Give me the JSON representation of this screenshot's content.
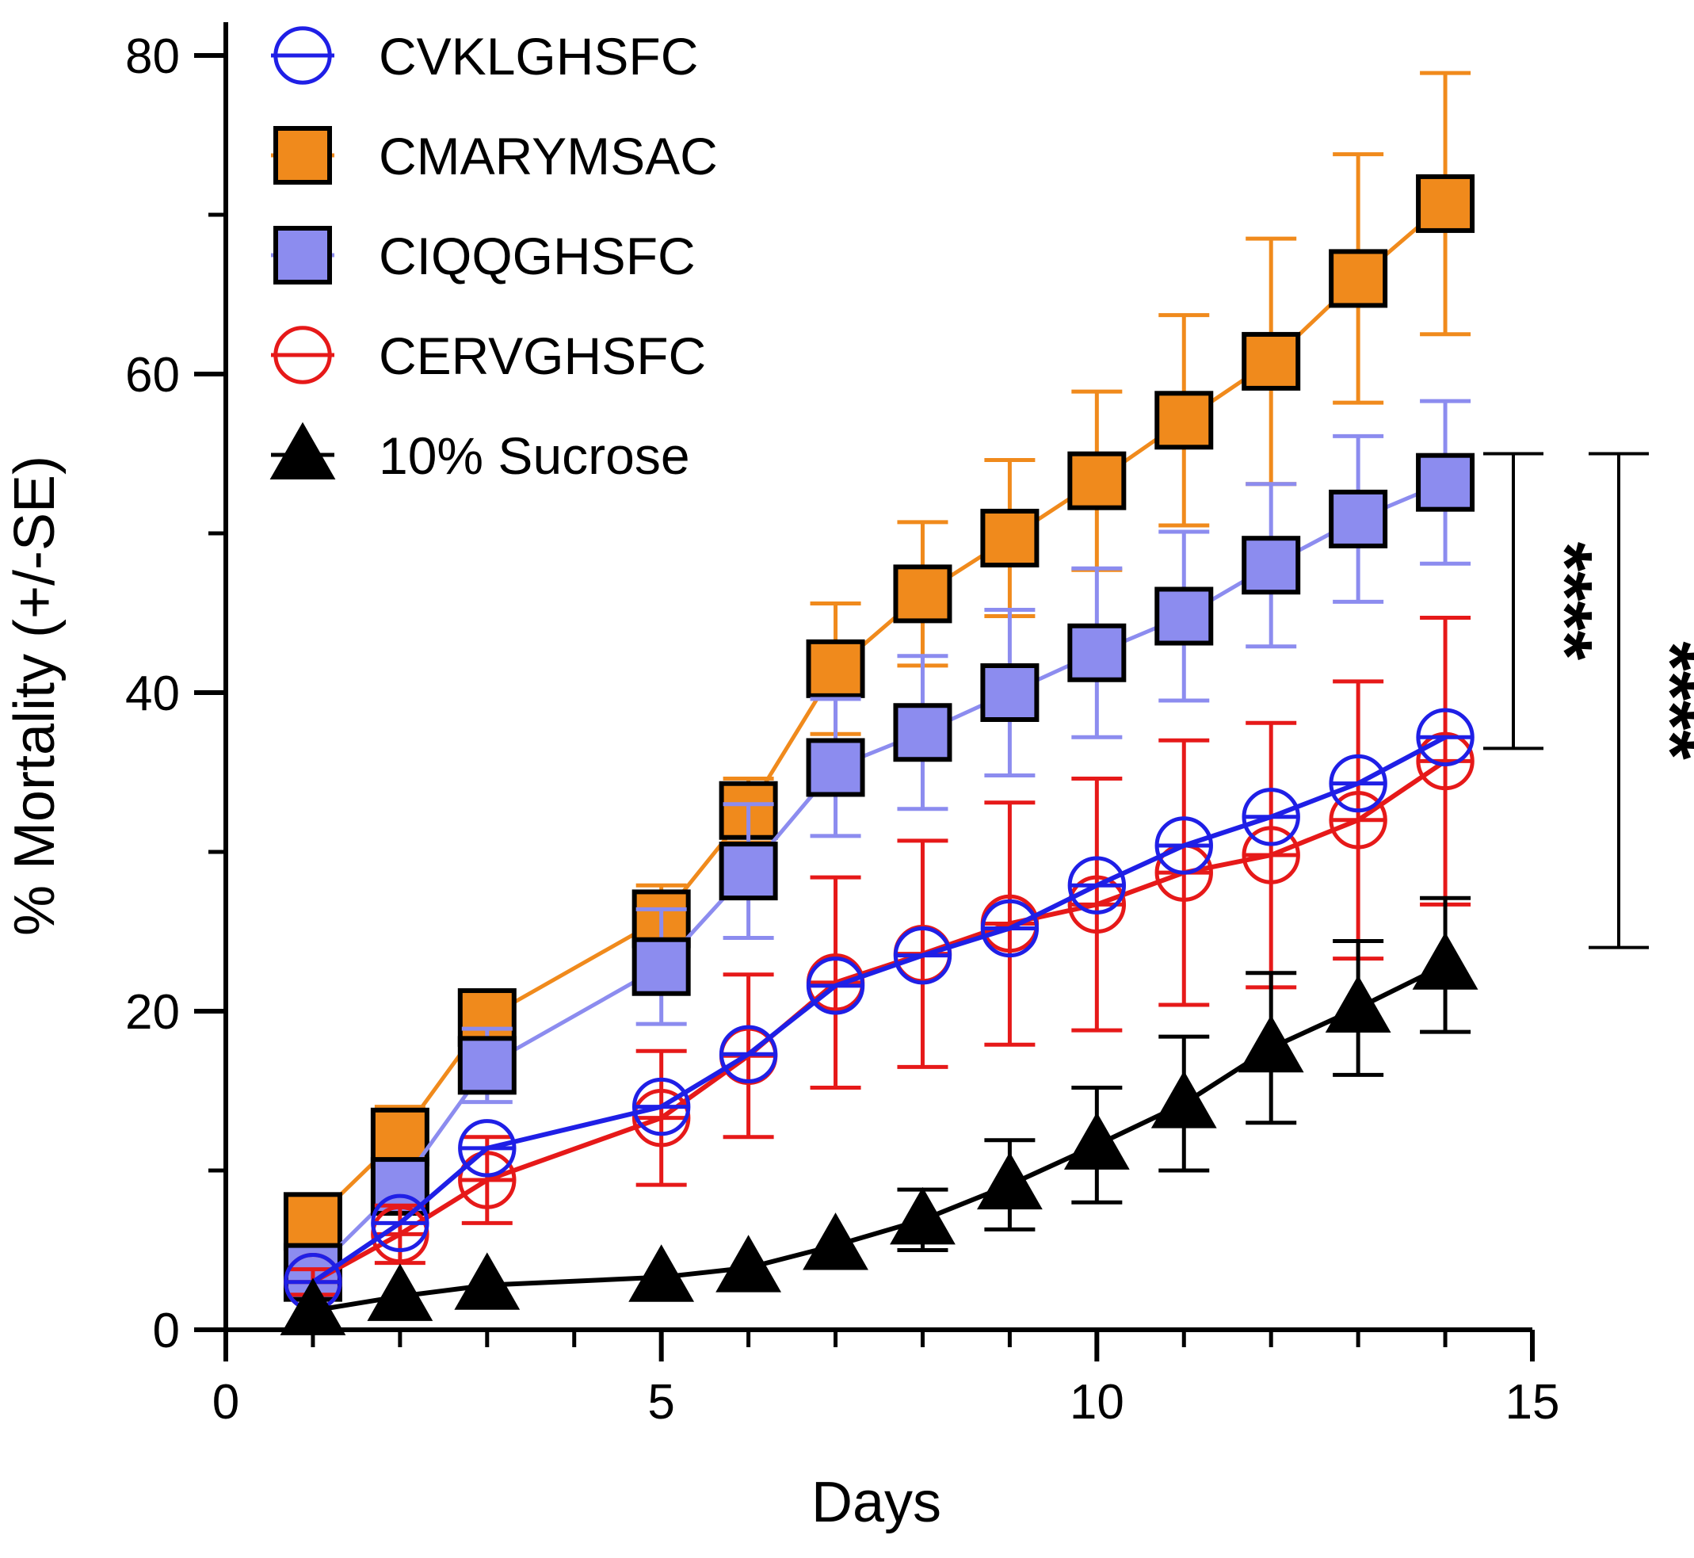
{
  "chart_data": {
    "type": "line",
    "title": "",
    "xlabel": "Days",
    "ylabel": "% Mortality (+/-SE)",
    "xlim": [
      0,
      15
    ],
    "ylim": [
      0,
      80
    ],
    "x_ticks": [
      0,
      5,
      10,
      15
    ],
    "y_ticks": [
      0,
      20,
      40,
      60,
      80
    ],
    "grid": false,
    "legend_position": "top-left",
    "series": [
      {
        "name": "CVKLGHSFC",
        "marker": "circle-open",
        "color": "#1f1fe6",
        "x": [
          1,
          2,
          3,
          5,
          6,
          7,
          8,
          9,
          10,
          11,
          12,
          13,
          14
        ],
        "y": [
          3.0,
          6.7,
          11.4,
          14.0,
          17.3,
          21.6,
          23.5,
          25.2,
          27.9,
          30.4,
          32.2,
          34.3,
          37.2
        ],
        "error": [
          0,
          0,
          0,
          0,
          0,
          0,
          0,
          0,
          0,
          0,
          0,
          0,
          0
        ]
      },
      {
        "name": "CMARYMSAC",
        "marker": "square-filled",
        "color": "#f08a1c",
        "x": [
          1,
          2,
          3,
          5,
          6,
          7,
          8,
          9,
          10,
          11,
          12,
          13,
          14
        ],
        "y": [
          6.8,
          12.1,
          19.6,
          25.8,
          32.6,
          41.5,
          46.2,
          49.7,
          53.3,
          57.1,
          60.8,
          66.0,
          70.7
        ],
        "error": [
          1.2,
          1.9,
          1.5,
          2.1,
          2.0,
          4.1,
          4.5,
          4.9,
          5.6,
          6.6,
          7.7,
          7.8,
          8.2
        ]
      },
      {
        "name": "CIQQGHSFC",
        "marker": "square-filled",
        "color": "#8c8cef",
        "x": [
          1,
          2,
          3,
          5,
          6,
          7,
          8,
          9,
          10,
          11,
          12,
          13,
          14
        ],
        "y": [
          3.6,
          9.0,
          16.6,
          22.8,
          28.8,
          35.3,
          37.5,
          40.0,
          42.5,
          44.8,
          48.0,
          50.9,
          53.2
        ],
        "error": [
          1.0,
          1.4,
          2.3,
          3.6,
          4.2,
          4.3,
          4.8,
          5.2,
          5.3,
          5.3,
          5.1,
          5.2,
          5.1
        ]
      },
      {
        "name": "CERVGHSFC",
        "marker": "circle-open",
        "color": "#e61919",
        "x": [
          1,
          2,
          3,
          5,
          6,
          7,
          8,
          9,
          10,
          11,
          12,
          13,
          14
        ],
        "y": [
          3.0,
          6.0,
          9.4,
          13.3,
          17.2,
          21.8,
          23.6,
          25.5,
          26.7,
          28.7,
          29.8,
          32.0,
          35.7
        ],
        "error": [
          0.8,
          1.8,
          2.7,
          4.2,
          5.1,
          6.6,
          7.1,
          7.6,
          7.9,
          8.3,
          8.3,
          8.7,
          9.0
        ]
      },
      {
        "name": "10% Sucrose",
        "marker": "triangle-filled",
        "color": "#000000",
        "x": [
          1,
          2,
          3,
          5,
          6,
          7,
          8,
          9,
          10,
          11,
          12,
          13,
          14
        ],
        "y": [
          1.2,
          2.1,
          2.8,
          3.3,
          3.9,
          5.3,
          6.9,
          9.1,
          11.6,
          14.2,
          17.7,
          20.2,
          22.9
        ],
        "error": [
          0,
          0,
          0,
          0,
          0,
          0,
          1.9,
          2.8,
          3.6,
          4.2,
          4.7,
          4.2,
          4.2
        ]
      }
    ],
    "annotations": [
      {
        "label": "****",
        "from_y": 55.0,
        "to_y": 36.5
      },
      {
        "label": "****",
        "from_y": 55.0,
        "to_y": 24.0
      }
    ]
  }
}
